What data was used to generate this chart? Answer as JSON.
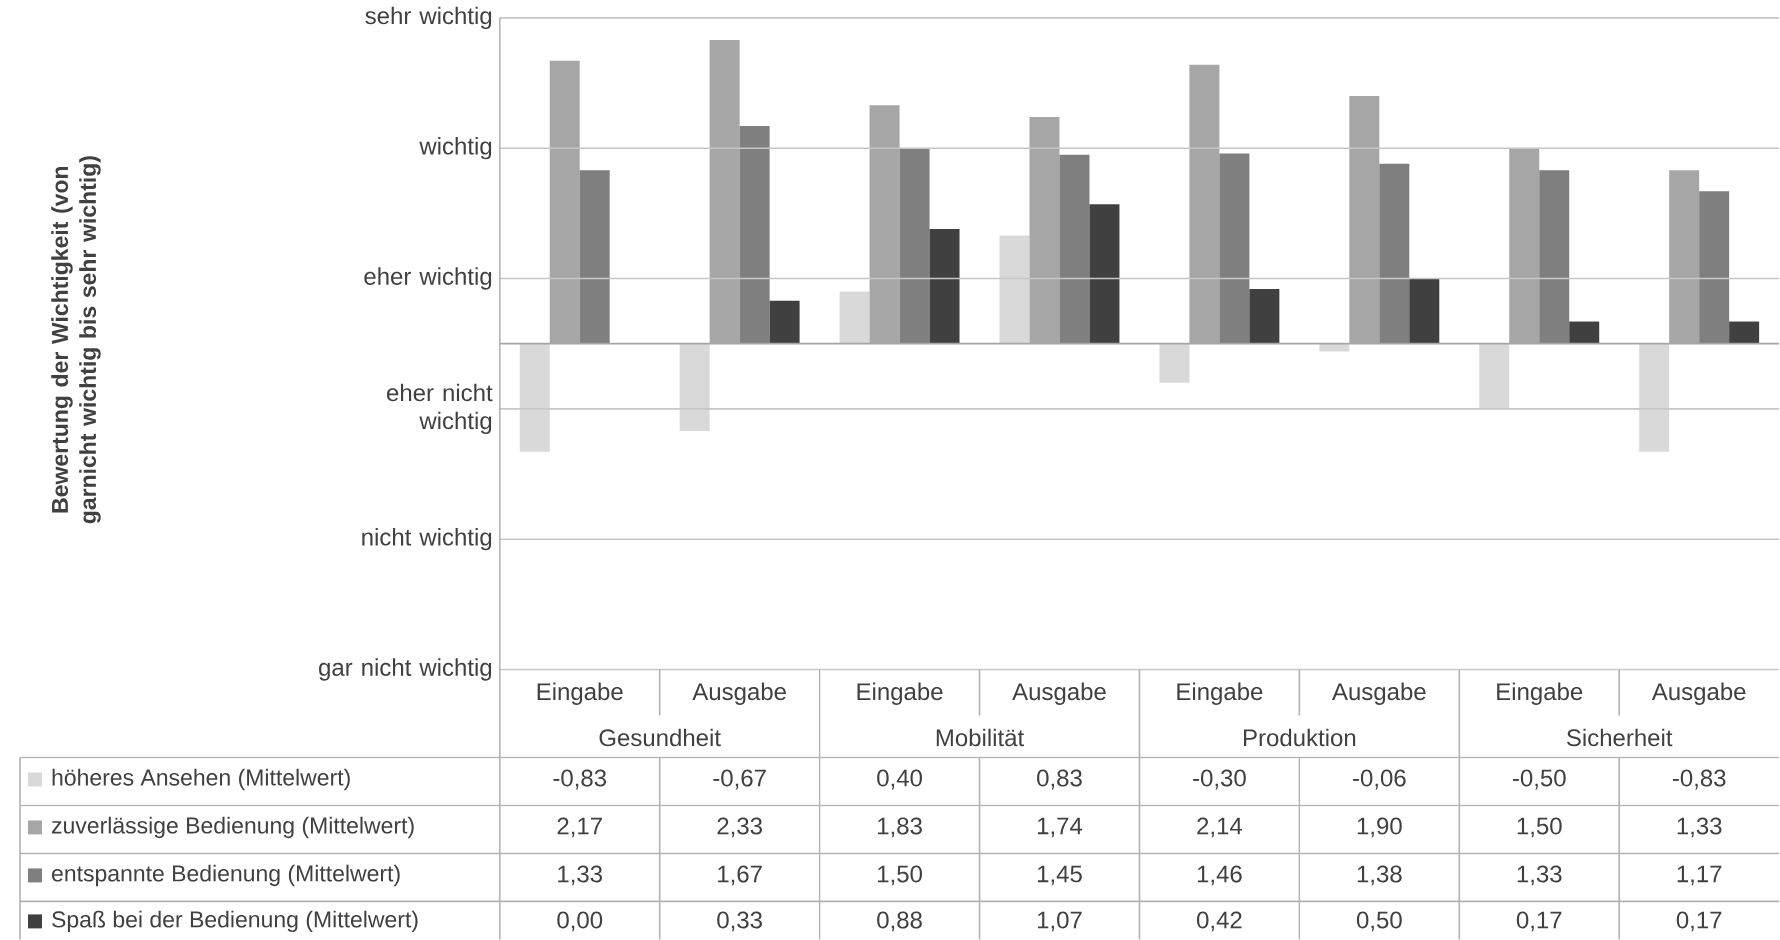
{
  "chart_data": {
    "type": "bar",
    "categories": [
      "Eingabe",
      "Ausgabe",
      "Eingabe",
      "Ausgabe",
      "Eingabe",
      "Ausgabe",
      "Eingabe",
      "Ausgabe"
    ],
    "annotations": [
      "Gesundheit",
      "Mobilität",
      "Produktion",
      "Sicherheit",
      "Bewertung der Wichtigkeit (von garnicht wichtig bis sehr wichtig)"
    ],
    "series": [
      {
        "name": "höheres Ansehen (Mittelwert)",
        "color": "#d9d9d9",
        "values": [
          -0.83,
          -0.67,
          0.4,
          0.83,
          -0.3,
          -0.06,
          -0.5,
          -0.83
        ],
        "value_labels": [
          "-0,83",
          "-0,67",
          "0,40",
          "0,83",
          "-0,30",
          "-0,06",
          "-0,50",
          "-0,83"
        ]
      },
      {
        "name": "zuverlässige Bedienung (Mittelwert)",
        "color": "#a6a6a6",
        "values": [
          2.17,
          2.33,
          1.83,
          1.74,
          2.14,
          1.9,
          1.5,
          1.33
        ],
        "value_labels": [
          "2,17",
          "2,33",
          "1,83",
          "1,74",
          "2,14",
          "1,90",
          "1,50",
          "1,33"
        ]
      },
      {
        "name": "entspannte Bedienung (Mittelwert)",
        "color": "#7f7f7f",
        "values": [
          1.33,
          1.67,
          1.5,
          1.45,
          1.46,
          1.38,
          1.33,
          1.17
        ],
        "value_labels": [
          "1,33",
          "1,67",
          "1,50",
          "1,45",
          "1,46",
          "1,38",
          "1,33",
          "1,17"
        ]
      },
      {
        "name": "Spaß bei der Bedienung (Mittelwert)",
        "color": "#404040",
        "values": [
          0.0,
          0.33,
          0.88,
          1.07,
          0.42,
          0.5,
          0.17,
          0.17
        ],
        "value_labels": [
          "0,00",
          "0,33",
          "0,88",
          "1,07",
          "0,42",
          "0,50",
          "0,17",
          "0,17"
        ]
      }
    ],
    "ylim": [
      -2.5,
      2.5
    ],
    "ref_lines": [
      {
        "axis": "y",
        "value": 2.5,
        "label": "sehr wichtig"
      },
      {
        "axis": "y",
        "value": 1.5,
        "label": "wichtig"
      },
      {
        "axis": "y",
        "value": 0.5,
        "label": "eher wichtig"
      },
      {
        "axis": "y",
        "value": -0.5,
        "label": "eher nicht wichtig"
      },
      {
        "axis": "y",
        "value": -1.5,
        "label": "nicht wichtig"
      },
      {
        "axis": "y",
        "value": -2.5,
        "label": "gar nicht wichtig"
      }
    ],
    "legend": "bottom"
  }
}
